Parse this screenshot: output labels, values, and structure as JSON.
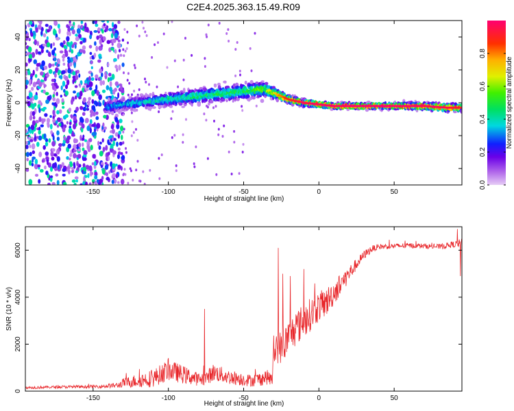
{
  "figure_title": "C2E4.2025.363.15.49.R09",
  "colors": {
    "snr_line": "#e8262a",
    "axis": "#000000"
  },
  "chart_data": [
    {
      "type": "heatmap",
      "xlabel": "Height of straight line (km)",
      "ylabel": "Frequency (Hz)",
      "xlim": [
        -195,
        95
      ],
      "ylim": [
        -50,
        50
      ],
      "xticks": [
        -150,
        -100,
        -50,
        0,
        50
      ],
      "yticks": [
        -40,
        -20,
        0,
        20,
        40
      ],
      "colorbar": {
        "label": "Normalized spectral amplitude",
        "range": [
          0,
          1
        ],
        "ticks": [
          0.0,
          0.2,
          0.4,
          0.6,
          0.8
        ],
        "tick_labels": [
          "0.0",
          "0.2",
          "0.4",
          "0.6",
          "0.8"
        ]
      },
      "ridge": {
        "x": [
          -142,
          -130,
          -120,
          -110,
          -100,
          -90,
          -80,
          -70,
          -60,
          -50,
          -40,
          -35,
          -30,
          -25,
          -20,
          -10,
          0,
          10,
          30,
          50,
          70,
          85,
          95
        ],
        "freq": [
          -3,
          -1,
          0,
          1,
          2,
          3,
          4,
          5,
          6,
          7,
          8,
          8,
          6,
          4,
          2,
          0,
          -1,
          -2,
          -2,
          -2,
          -2,
          -3,
          -3
        ],
        "amplitude": [
          0.3,
          0.35,
          0.38,
          0.4,
          0.42,
          0.44,
          0.46,
          0.47,
          0.48,
          0.5,
          0.55,
          0.58,
          0.65,
          0.75,
          0.85,
          0.9,
          0.92,
          0.93,
          0.95,
          0.95,
          0.92,
          0.9,
          0.85
        ],
        "spread_hz": [
          3,
          3,
          3,
          3,
          3.5,
          3.5,
          4,
          4,
          4,
          4,
          4,
          3.5,
          3,
          2.5,
          2,
          1.8,
          1.6,
          1.5,
          1.5,
          1.5,
          1.8,
          2,
          2
        ]
      },
      "noise_region": {
        "x_range": [
          -195,
          -130
        ],
        "amplitude_range": [
          0.05,
          0.45
        ]
      }
    },
    {
      "type": "line",
      "xlabel": "Height of straight line (km)",
      "ylabel": "SNR (10 * v/v)",
      "xlim": [
        -195,
        95
      ],
      "ylim": [
        0,
        7000
      ],
      "xticks": [
        -150,
        -100,
        -50,
        0,
        50
      ],
      "yticks": [
        0,
        2000,
        4000,
        6000
      ],
      "series": [
        {
          "name": "SNR",
          "x": [
            -195,
            -170,
            -145,
            -133,
            -130,
            -120,
            -110,
            -100,
            -95,
            -90,
            -80,
            -75,
            -70,
            -60,
            -50,
            -45,
            -40,
            -35,
            -31,
            -30,
            -28,
            -25,
            -20,
            -15,
            -10,
            -5,
            0,
            5,
            10,
            15,
            20,
            25,
            30,
            35,
            40,
            60,
            80,
            90,
            95
          ],
          "y": [
            150,
            180,
            200,
            250,
            350,
            450,
            550,
            900,
            800,
            700,
            500,
            550,
            800,
            600,
            500,
            450,
            500,
            600,
            500,
            1500,
            2000,
            1800,
            2300,
            2700,
            3000,
            3300,
            3600,
            3800,
            4200,
            4600,
            5000,
            5400,
            5800,
            6050,
            6150,
            6200,
            6150,
            6250,
            6300
          ],
          "spread": [
            60,
            60,
            70,
            120,
            200,
            300,
            380,
            450,
            420,
            380,
            280,
            300,
            380,
            320,
            280,
            260,
            300,
            320,
            300,
            600,
            800,
            700,
            750,
            750,
            750,
            700,
            650,
            600,
            550,
            450,
            350,
            250,
            180,
            150,
            120,
            110,
            110,
            140,
            200
          ],
          "spikes": [
            {
              "x": -76,
              "y": 3500
            },
            {
              "x": -27,
              "y": 6100
            },
            {
              "x": -24,
              "y": 5000
            },
            {
              "x": -19,
              "y": 4900
            },
            {
              "x": -10,
              "y": 5200
            },
            {
              "x": 92,
              "y": 6900
            },
            {
              "x": 94,
              "y": 4900
            }
          ]
        }
      ]
    }
  ]
}
